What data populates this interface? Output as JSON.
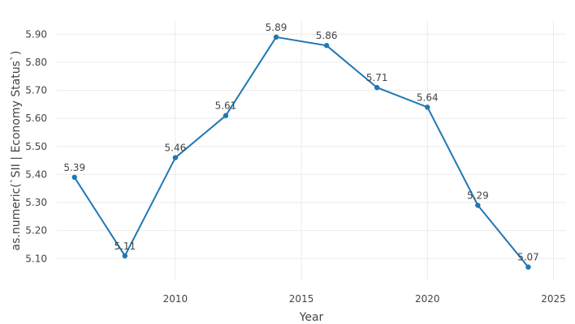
{
  "chart_data": {
    "type": "line",
    "title": "",
    "xlabel": "Year",
    "ylabel": "as.numeric(`SII | Economy Status`)",
    "x": [
      2006,
      2008,
      2010,
      2012,
      2014,
      2016,
      2018,
      2020,
      2022,
      2024
    ],
    "series": [
      {
        "values": [
          5.39,
          5.11,
          5.46,
          5.61,
          5.89,
          5.86,
          5.71,
          5.64,
          5.29,
          5.07
        ],
        "labels": [
          "5.39",
          "5.11",
          "5.46",
          "5.61",
          "5.89",
          "5.86",
          "5.71",
          "5.64",
          "5.29",
          "5.07"
        ],
        "color": "#1f77b4"
      }
    ],
    "xlim": [
      2005.3,
      2025.5
    ],
    "ylim": [
      5.02,
      5.95
    ],
    "xticks": [
      2010,
      2015,
      2020,
      2025
    ],
    "xtick_labels": [
      "2010",
      "2015",
      "2020",
      "2025"
    ],
    "yticks": [
      5.1,
      5.2,
      5.3,
      5.4,
      5.5,
      5.6,
      5.7,
      5.8,
      5.9
    ],
    "ytick_labels": [
      "5.10",
      "5.20",
      "5.30",
      "5.40",
      "5.50",
      "5.60",
      "5.70",
      "5.80",
      "5.90"
    ],
    "grid": true,
    "legend": "none"
  }
}
